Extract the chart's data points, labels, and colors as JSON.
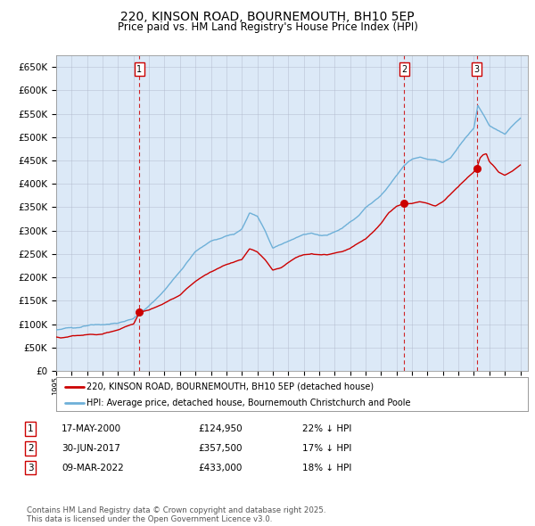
{
  "title": "220, KINSON ROAD, BOURNEMOUTH, BH10 5EP",
  "subtitle": "Price paid vs. HM Land Registry's House Price Index (HPI)",
  "title_fontsize": 10,
  "subtitle_fontsize": 8.5,
  "bg_color": "#dce9f7",
  "fig_bg_color": "#ffffff",
  "ylim": [
    0,
    675000
  ],
  "yticks": [
    0,
    50000,
    100000,
    150000,
    200000,
    250000,
    300000,
    350000,
    400000,
    450000,
    500000,
    550000,
    600000,
    650000
  ],
  "xlim": [
    1995.0,
    2025.5
  ],
  "xticks": [
    1995,
    1996,
    1997,
    1998,
    1999,
    2000,
    2001,
    2002,
    2003,
    2004,
    2005,
    2006,
    2007,
    2008,
    2009,
    2010,
    2011,
    2012,
    2013,
    2014,
    2015,
    2016,
    2017,
    2018,
    2019,
    2020,
    2021,
    2022,
    2023,
    2024,
    2025
  ],
  "sale_prices": [
    124950,
    357500,
    433000
  ],
  "sale_labels": [
    "1",
    "2",
    "3"
  ],
  "sale_decimal": [
    2000.375,
    2017.5,
    2022.19
  ],
  "legend_entries": [
    "220, KINSON ROAD, BOURNEMOUTH, BH10 5EP (detached house)",
    "HPI: Average price, detached house, Bournemouth Christchurch and Poole"
  ],
  "legend_colors": [
    "#cc0000",
    "#6eb0d8"
  ],
  "table_rows": [
    [
      "1",
      "17-MAY-2000",
      "£124,950",
      "22% ↓ HPI"
    ],
    [
      "2",
      "30-JUN-2017",
      "£357,500",
      "17% ↓ HPI"
    ],
    [
      "3",
      "09-MAR-2022",
      "£433,000",
      "18% ↓ HPI"
    ]
  ],
  "footer": "Contains HM Land Registry data © Crown copyright and database right 2025.\nThis data is licensed under the Open Government Licence v3.0.",
  "hpi_color": "#6eb0d8",
  "price_color": "#cc0000",
  "vline_color": "#cc0000",
  "grid_color": "#b0b8cc",
  "marker_color": "#cc0000",
  "hpi_anchors": [
    [
      1995.0,
      88000
    ],
    [
      1995.5,
      90000
    ],
    [
      1996.0,
      92000
    ],
    [
      1997.0,
      96000
    ],
    [
      1998.0,
      99000
    ],
    [
      1999.0,
      102000
    ],
    [
      2000.0,
      112000
    ],
    [
      2001.0,
      138000
    ],
    [
      2002.0,
      172000
    ],
    [
      2003.0,
      213000
    ],
    [
      2004.0,
      255000
    ],
    [
      2004.7,
      272000
    ],
    [
      2005.0,
      278000
    ],
    [
      2005.5,
      282000
    ],
    [
      2006.0,
      288000
    ],
    [
      2006.5,
      292000
    ],
    [
      2007.0,
      305000
    ],
    [
      2007.5,
      338000
    ],
    [
      2008.0,
      330000
    ],
    [
      2008.5,
      300000
    ],
    [
      2009.0,
      263000
    ],
    [
      2009.5,
      270000
    ],
    [
      2010.0,
      278000
    ],
    [
      2010.5,
      285000
    ],
    [
      2011.0,
      292000
    ],
    [
      2011.5,
      295000
    ],
    [
      2012.0,
      290000
    ],
    [
      2012.5,
      290000
    ],
    [
      2013.0,
      298000
    ],
    [
      2013.5,
      305000
    ],
    [
      2014.0,
      318000
    ],
    [
      2014.5,
      330000
    ],
    [
      2015.0,
      348000
    ],
    [
      2015.5,
      362000
    ],
    [
      2016.0,
      375000
    ],
    [
      2016.5,
      395000
    ],
    [
      2017.0,
      418000
    ],
    [
      2017.5,
      440000
    ],
    [
      2018.0,
      452000
    ],
    [
      2018.5,
      458000
    ],
    [
      2019.0,
      452000
    ],
    [
      2019.5,
      450000
    ],
    [
      2020.0,
      445000
    ],
    [
      2020.5,
      455000
    ],
    [
      2021.0,
      478000
    ],
    [
      2021.5,
      500000
    ],
    [
      2022.0,
      520000
    ],
    [
      2022.25,
      568000
    ],
    [
      2022.5,
      555000
    ],
    [
      2022.75,
      540000
    ],
    [
      2023.0,
      525000
    ],
    [
      2023.5,
      515000
    ],
    [
      2024.0,
      505000
    ],
    [
      2024.5,
      525000
    ],
    [
      2025.0,
      540000
    ]
  ],
  "price_anchors": [
    [
      1995.0,
      72000
    ],
    [
      1995.3,
      70000
    ],
    [
      1996.0,
      74000
    ],
    [
      1997.0,
      77000
    ],
    [
      1998.0,
      80000
    ],
    [
      1999.0,
      88000
    ],
    [
      1999.5,
      95000
    ],
    [
      2000.0,
      100000
    ],
    [
      2000.375,
      124950
    ],
    [
      2001.0,
      130000
    ],
    [
      2002.0,
      145000
    ],
    [
      2003.0,
      162000
    ],
    [
      2004.0,
      192000
    ],
    [
      2005.0,
      212000
    ],
    [
      2006.0,
      228000
    ],
    [
      2007.0,
      238000
    ],
    [
      2007.5,
      262000
    ],
    [
      2008.0,
      255000
    ],
    [
      2008.5,
      238000
    ],
    [
      2009.0,
      215000
    ],
    [
      2009.5,
      220000
    ],
    [
      2010.0,
      232000
    ],
    [
      2010.5,
      242000
    ],
    [
      2011.0,
      248000
    ],
    [
      2011.5,
      250000
    ],
    [
      2012.0,
      248000
    ],
    [
      2012.5,
      248000
    ],
    [
      2013.0,
      252000
    ],
    [
      2013.5,
      255000
    ],
    [
      2014.0,
      262000
    ],
    [
      2014.5,
      272000
    ],
    [
      2015.0,
      282000
    ],
    [
      2015.5,
      298000
    ],
    [
      2016.0,
      315000
    ],
    [
      2016.5,
      338000
    ],
    [
      2017.0,
      352000
    ],
    [
      2017.5,
      357500
    ],
    [
      2018.0,
      358000
    ],
    [
      2018.5,
      362000
    ],
    [
      2019.0,
      358000
    ],
    [
      2019.5,
      352000
    ],
    [
      2020.0,
      362000
    ],
    [
      2020.5,
      378000
    ],
    [
      2021.0,
      395000
    ],
    [
      2021.5,
      410000
    ],
    [
      2022.0,
      425000
    ],
    [
      2022.19,
      433000
    ],
    [
      2022.4,
      455000
    ],
    [
      2022.6,
      462000
    ],
    [
      2022.8,
      465000
    ],
    [
      2023.0,
      448000
    ],
    [
      2023.3,
      438000
    ],
    [
      2023.6,
      425000
    ],
    [
      2024.0,
      418000
    ],
    [
      2024.5,
      428000
    ],
    [
      2025.0,
      440000
    ]
  ]
}
